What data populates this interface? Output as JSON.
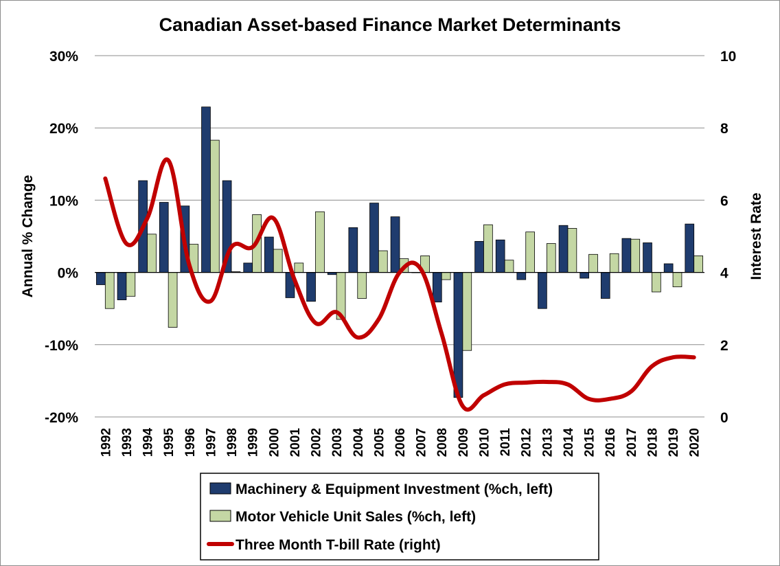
{
  "chart_data": {
    "type": "bar",
    "title": "Canadian Asset-based Finance Market Determinants",
    "categories": [
      "1992",
      "1993",
      "1994",
      "1995",
      "1996",
      "1997",
      "1998",
      "1999",
      "2000",
      "2001",
      "2002",
      "2003",
      "2004",
      "2005",
      "2006",
      "2007",
      "2008",
      "2009",
      "2010",
      "2011",
      "2012",
      "2013",
      "2014",
      "2015",
      "2016",
      "2017",
      "2018",
      "2019",
      "2020"
    ],
    "ylabel_left": "Annual % Change",
    "ylabel_right": "Interest Rate",
    "ylim_left": [
      -20,
      30
    ],
    "yticks_left": [
      "-20%",
      "-10%",
      "0%",
      "10%",
      "20%",
      "30%"
    ],
    "ylim_right": [
      0,
      10
    ],
    "yticks_right": [
      "0",
      "2",
      "4",
      "6",
      "8",
      "10"
    ],
    "grid": true,
    "legend_position": "bottom",
    "series": [
      {
        "name": "Machinery & Equipment Investment (%ch, left)",
        "type": "bar",
        "axis": "left",
        "color": "#1f3c6e",
        "values": [
          -1.7,
          -3.8,
          12.7,
          9.7,
          9.2,
          22.9,
          12.7,
          1.3,
          4.9,
          -3.5,
          -4.0,
          -0.3,
          6.2,
          9.6,
          7.7,
          0.0,
          -4.1,
          -17.3,
          4.3,
          4.5,
          -1.0,
          -5.0,
          6.5,
          -0.8,
          -3.6,
          4.7,
          4.1,
          1.2,
          6.7
        ]
      },
      {
        "name": "Motor Vehicle Unit Sales (%ch, left)",
        "type": "bar",
        "axis": "left",
        "color": "#c4d7a4",
        "values": [
          -5.0,
          -3.3,
          5.3,
          -7.6,
          3.9,
          18.3,
          0.1,
          8.0,
          3.2,
          1.3,
          8.4,
          -6.5,
          -3.6,
          3.0,
          1.9,
          2.3,
          -1.0,
          -10.8,
          6.6,
          1.7,
          5.6,
          4.0,
          6.1,
          2.5,
          2.6,
          4.6,
          -2.7,
          -2.0,
          2.3
        ]
      },
      {
        "name": "Three Month T-bill Rate (right)",
        "type": "line",
        "axis": "right",
        "color": "#c00000",
        "values": [
          6.6,
          4.8,
          5.5,
          7.1,
          4.2,
          3.2,
          4.7,
          4.7,
          5.5,
          3.8,
          2.6,
          2.9,
          2.2,
          2.7,
          4.0,
          4.1,
          2.3,
          0.3,
          0.6,
          0.9,
          0.95,
          0.97,
          0.9,
          0.5,
          0.5,
          0.7,
          1.4,
          1.65,
          1.65
        ]
      }
    ]
  }
}
